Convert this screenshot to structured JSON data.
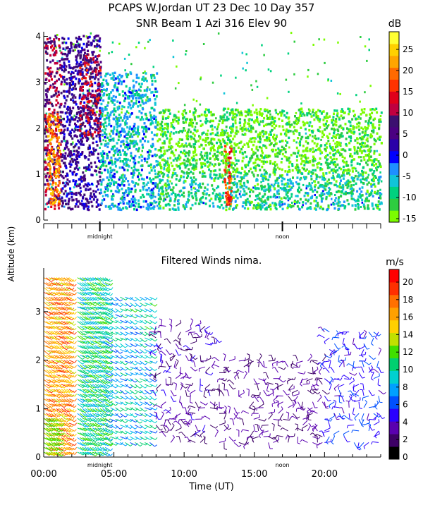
{
  "title_line1": "PCAPS W.Jordan UT  23 Dec 10 Day 357",
  "ylabel_shared": "Altitude (km)",
  "marker_labels": [
    "midnight",
    "noon"
  ],
  "chart_data": [
    {
      "type": "heatmap",
      "title": "SNR Beam 1 Azi 316 Elev 90",
      "ylabel": "Altitude (km)",
      "xlim": [
        0,
        24
      ],
      "ylim": [
        0,
        4.1
      ],
      "yticks": [
        "0",
        "1",
        "2",
        "3",
        "4"
      ],
      "colorbar": {
        "label": "dB",
        "range": [
          -15,
          30
        ],
        "ticks": [
          "25",
          "20",
          "15",
          "10",
          "5",
          "0",
          "-5",
          "-10",
          "-15"
        ],
        "colors": [
          "#7cfc00",
          "#2ecc40",
          "#00d27f",
          "#11c4d8",
          "#1e90ff",
          "#0000ff",
          "#2a00a8",
          "#4b0082",
          "#3c1070",
          "#c00040",
          "#e0001a",
          "#ff3300",
          "#ff6a00",
          "#ffa500",
          "#ffd000",
          "#ffff33"
        ]
      },
      "description_regions": [
        {
          "x": [
            0,
            1.2
          ],
          "alt": [
            0.2,
            4.0
          ],
          "snr_db": 10
        },
        {
          "x": [
            0.2,
            1.1
          ],
          "alt": [
            0.3,
            2.3
          ],
          "snr_db": 22
        },
        {
          "x": [
            1.2,
            4.0
          ],
          "alt": [
            0.2,
            4.0
          ],
          "snr_db": 5
        },
        {
          "x": [
            2.5,
            4.0
          ],
          "alt": [
            1.8,
            3.6
          ],
          "snr_db": 12
        },
        {
          "x": [
            4.0,
            8.0
          ],
          "alt": [
            0.2,
            3.2
          ],
          "snr_db": -5
        },
        {
          "x": [
            8.0,
            24
          ],
          "alt": [
            0.2,
            1.0
          ],
          "snr_db": -8
        },
        {
          "x": [
            12.8,
            13.3
          ],
          "alt": [
            0.3,
            1.6
          ],
          "snr_db": 18
        },
        {
          "x": [
            8.0,
            24
          ],
          "alt": [
            1.0,
            2.4
          ],
          "snr_db": -12
        }
      ]
    },
    {
      "type": "scatter",
      "title": "Filtered Winds nima.",
      "xlabel": "Time (UT)",
      "ylabel": "Altitude (km)",
      "xlim": [
        0,
        24
      ],
      "ylim": [
        0,
        3.9
      ],
      "xticks": [
        "00:00",
        "05:00",
        "10:00",
        "15:00",
        "20:00"
      ],
      "yticks": [
        "0",
        "1",
        "2",
        "3"
      ],
      "colorbar": {
        "label": "m/s",
        "range": [
          0,
          22
        ],
        "ticks": [
          "20",
          "18",
          "16",
          "14",
          "12",
          "10",
          "8",
          "6",
          "4",
          "2",
          "0"
        ],
        "colors": [
          "#000000",
          "#3d0066",
          "#5a00b0",
          "#2a00ff",
          "#0050ff",
          "#00a0ff",
          "#00d0d0",
          "#00d070",
          "#40e000",
          "#c0e000",
          "#ffd000",
          "#ffa000",
          "#ff7000",
          "#ff3000",
          "#ff0000"
        ]
      },
      "wind_regions": [
        {
          "x": [
            0,
            1.9
          ],
          "alt": [
            0.1,
            3.8
          ],
          "speed_ms": [
            14,
            20
          ]
        },
        {
          "x": [
            0,
            1.0
          ],
          "alt": [
            0.1,
            0.8
          ],
          "speed_ms": [
            12,
            14
          ]
        },
        {
          "x": [
            2.4,
            4.4
          ],
          "alt": [
            0.1,
            3.8
          ],
          "speed_ms": [
            8,
            13
          ]
        },
        {
          "x": [
            4.4,
            7.8
          ],
          "alt": [
            0.3,
            3.4
          ],
          "speed_ms": [
            6,
            12
          ]
        },
        {
          "x": [
            8.0,
            12.5
          ],
          "alt": [
            0.3,
            2.8
          ],
          "speed_ms": [
            2,
            5
          ]
        },
        {
          "x": [
            12.5,
            20.0
          ],
          "alt": [
            0.3,
            2.0
          ],
          "speed_ms": [
            2,
            4
          ]
        },
        {
          "x": [
            20.0,
            24.0
          ],
          "alt": [
            0.3,
            2.7
          ],
          "speed_ms": [
            4,
            7
          ]
        }
      ]
    }
  ]
}
